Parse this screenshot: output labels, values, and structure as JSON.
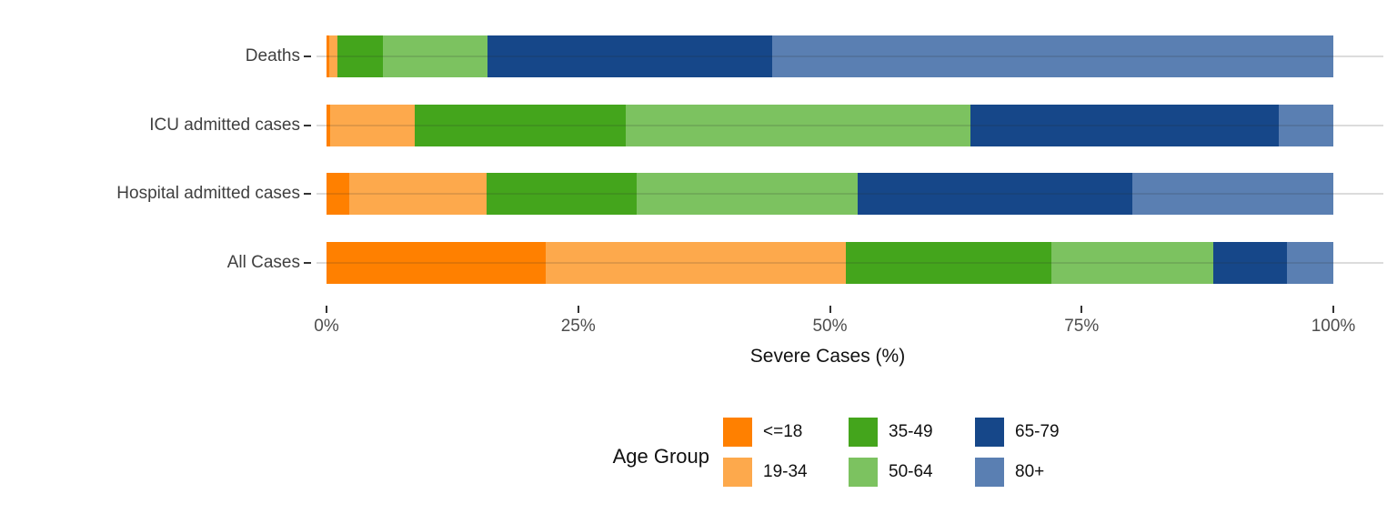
{
  "chart_data": {
    "type": "bar",
    "orientation": "horizontal",
    "stacked": true,
    "title": "",
    "xlabel": "Severe Cases (%)",
    "ylabel": "",
    "xlim": [
      0,
      100
    ],
    "x_ticks": [
      {
        "value": 0,
        "label": "0%"
      },
      {
        "value": 25,
        "label": "25%"
      },
      {
        "value": 50,
        "label": "50%"
      },
      {
        "value": 75,
        "label": "75%"
      },
      {
        "value": 100,
        "label": "100%"
      }
    ],
    "categories": [
      "Deaths",
      "ICU admitted cases",
      "Hospital admitted cases",
      "All Cases"
    ],
    "series": [
      {
        "name": "<=18",
        "color": "#FF8000",
        "values": [
          0.3,
          0.4,
          2.3,
          21.8
        ]
      },
      {
        "name": "19-34",
        "color": "#FDA94C",
        "values": [
          0.8,
          8.4,
          13.6,
          29.8
        ]
      },
      {
        "name": "35-49",
        "color": "#44A51C",
        "values": [
          4.5,
          20.9,
          14.9,
          20.4
        ]
      },
      {
        "name": "50-64",
        "color": "#7CC260",
        "values": [
          10.4,
          34.3,
          22.0,
          16.1
        ]
      },
      {
        "name": "65-79",
        "color": "#164789",
        "values": [
          28.3,
          30.6,
          27.2,
          7.3
        ]
      },
      {
        "name": "80+",
        "color": "#5A7FB2",
        "values": [
          55.7,
          5.4,
          20.0,
          4.6
        ]
      }
    ],
    "legend": {
      "title": "Age Group",
      "position": "bottom",
      "rows": 2,
      "order_column_major": [
        "<=18",
        "19-34",
        "35-49",
        "50-64",
        "65-79",
        "80+"
      ]
    },
    "grid": "horizontal-only",
    "background": "#ffffff"
  }
}
